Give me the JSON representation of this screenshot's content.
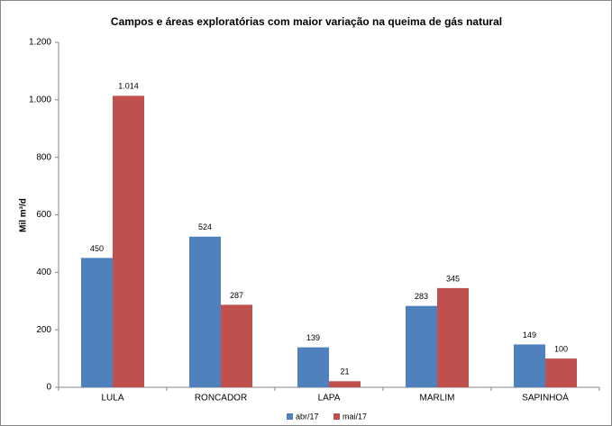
{
  "chart_data": {
    "type": "bar",
    "title": "Campos e áreas exploratórias com maior variação na queima de gás natural",
    "ylabel": "Mil m³/d",
    "categories": [
      "LULA",
      "RONCADOR",
      "LAPA",
      "MARLIM",
      "SAPINHOÁ"
    ],
    "series": [
      {
        "name": "abr/17",
        "color": "#4f81bd",
        "values": [
          450,
          524,
          139,
          283,
          149
        ]
      },
      {
        "name": "mai/17",
        "color": "#c0504d",
        "values": [
          1014,
          287,
          21,
          345,
          100
        ],
        "value_labels": [
          "1.014",
          "287",
          "21",
          "345",
          "100"
        ]
      }
    ],
    "ylim": [
      0,
      1200
    ],
    "yticks": [
      0,
      200,
      400,
      600,
      800,
      {
        "value": 1000,
        "label": "1.000"
      },
      {
        "value": 1200,
        "label": "1.200"
      }
    ],
    "grid": false,
    "legend": "bottom"
  }
}
